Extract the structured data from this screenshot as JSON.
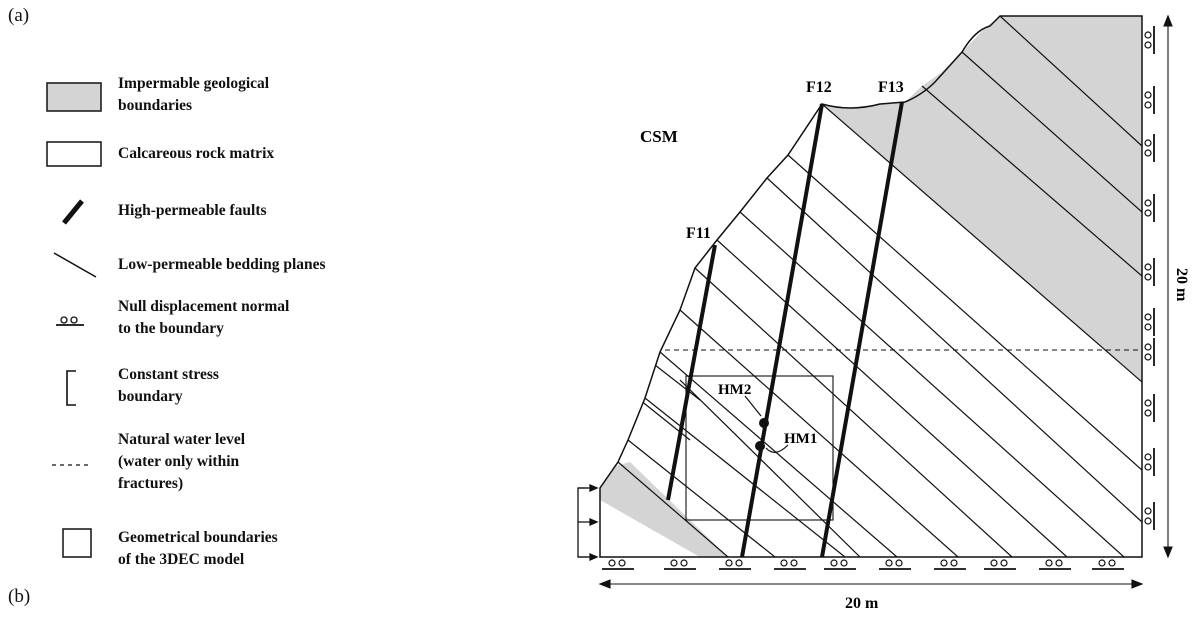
{
  "panel_labels": {
    "a": "(a)",
    "b": "(b)"
  },
  "legend": [
    {
      "id": "impermeable",
      "text": [
        "Impermable geological",
        "boundaries"
      ]
    },
    {
      "id": "matrix",
      "text": [
        "Calcareous rock matrix"
      ]
    },
    {
      "id": "faults",
      "text": [
        "High-permeable faults"
      ]
    },
    {
      "id": "bedding",
      "text": [
        "Low-permeable bedding planes"
      ]
    },
    {
      "id": "null-disp",
      "text": [
        "Null displacement normal",
        "to the boundary"
      ]
    },
    {
      "id": "const-stress",
      "text": [
        "Constant stress",
        "boundary"
      ]
    },
    {
      "id": "water-level",
      "text": [
        "Natural water level",
        "(water only within",
        "fractures)"
      ]
    },
    {
      "id": "geom-boundary",
      "text": [
        "Geometrical boundaries",
        "of the 3DEC model"
      ]
    }
  ],
  "diagram": {
    "site_label": "CSM",
    "faults": [
      "F11",
      "F12",
      "F13"
    ],
    "monitors": [
      "HM2",
      "HM1"
    ],
    "dim_horizontal": "20 m",
    "dim_vertical": "20 m"
  },
  "colors": {
    "impermeable_fill": "#d4d4d4",
    "stroke": "#111111"
  }
}
